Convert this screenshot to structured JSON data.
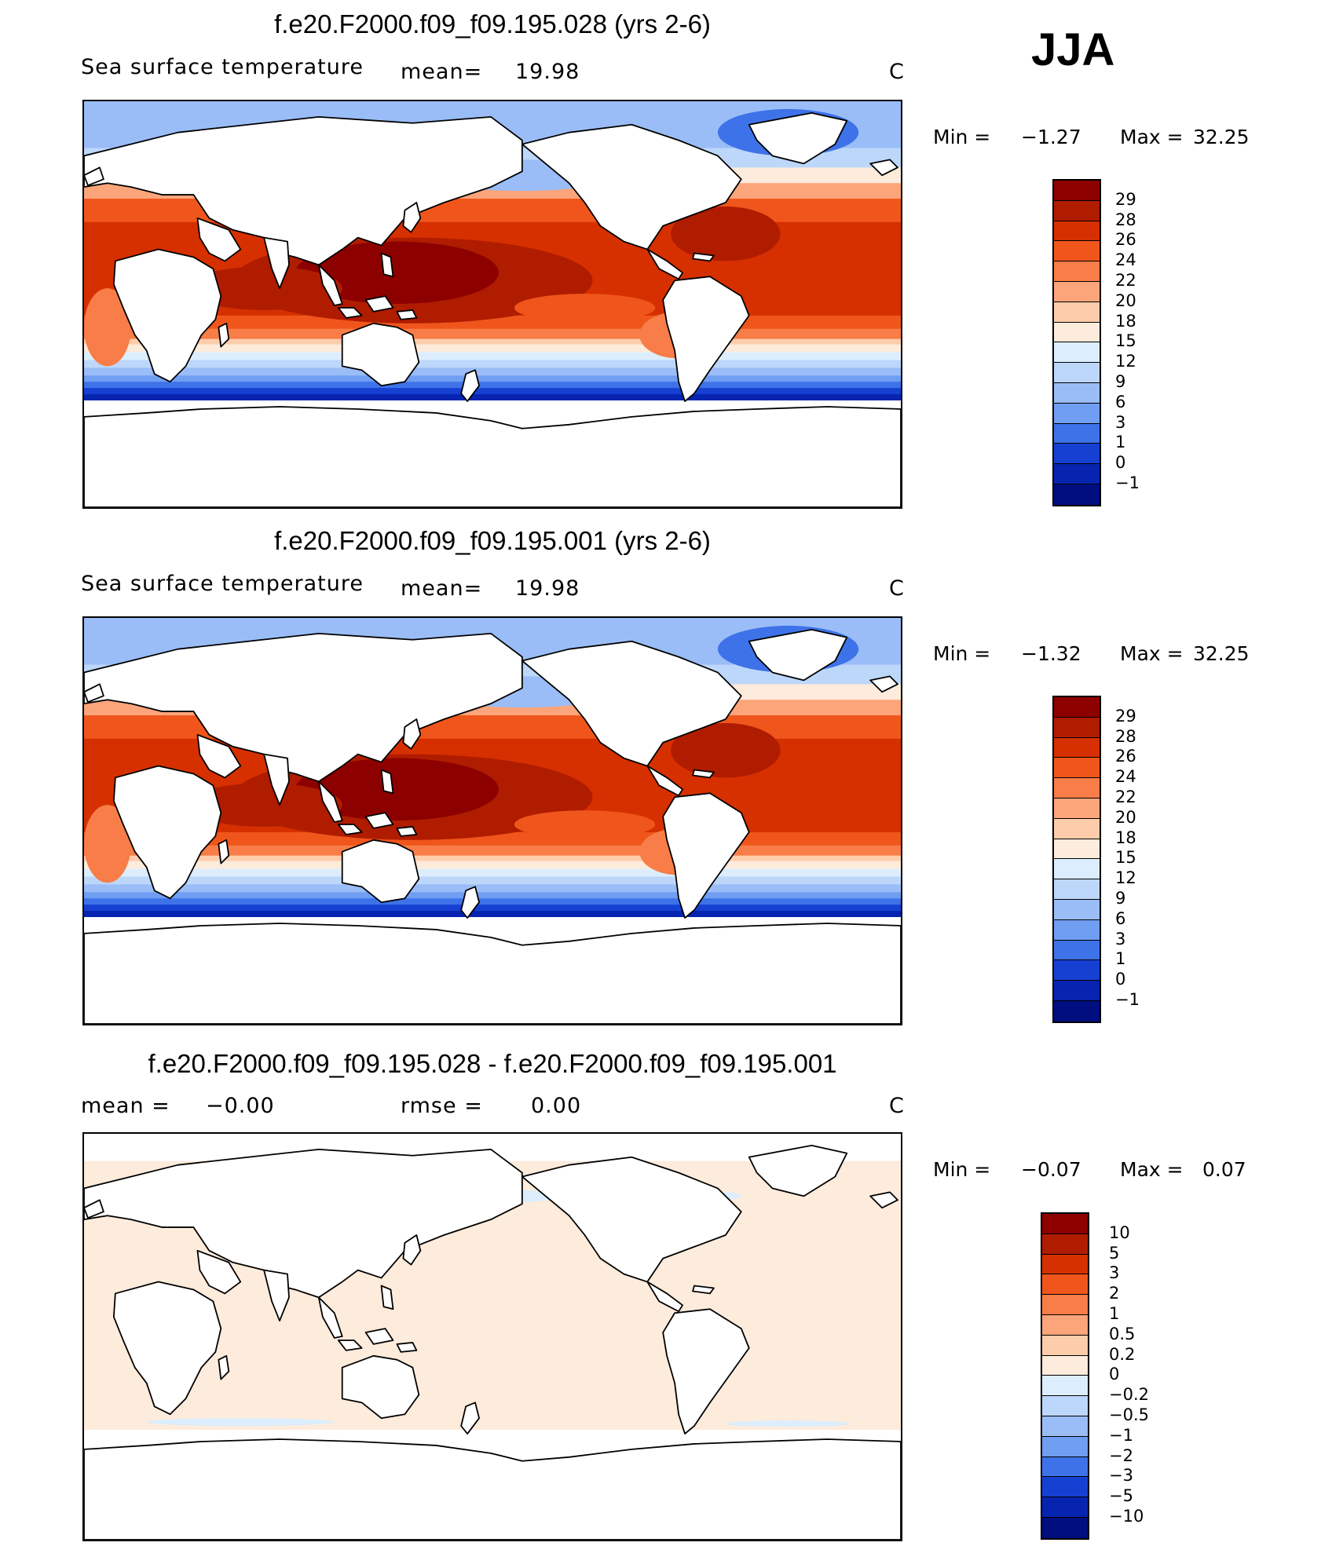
{
  "season": "JJA",
  "panels": [
    {
      "title": "f.e20.F2000.f09_f09.195.028 (yrs 2-6)",
      "variable": "Sea surface temperature",
      "stat_label": "mean=",
      "stat_value": "19.98",
      "units": "C",
      "min_label": "Min =",
      "min_value": "−1.27",
      "max_label": "Max =",
      "max_value": "32.25",
      "colorbar": {
        "labels": [
          "29",
          "28",
          "26",
          "24",
          "22",
          "20",
          "18",
          "15",
          "12",
          "9",
          "6",
          "3",
          "1",
          "0",
          "−1"
        ],
        "colors": [
          "#8c0000",
          "#b01c00",
          "#d63000",
          "#f0561c",
          "#f87d48",
          "#fca57b",
          "#fdcdab",
          "#fdebdb",
          "#dceefe",
          "#bdd7fb",
          "#9abdf7",
          "#6f9ef2",
          "#3e72e8",
          "#1540d2",
          "#0724b0",
          "#000e80"
        ]
      }
    },
    {
      "title": "f.e20.F2000.f09_f09.195.001 (yrs 2-6)",
      "variable": "Sea surface temperature",
      "stat_label": "mean=",
      "stat_value": "19.98",
      "units": "C",
      "min_label": "Min =",
      "min_value": "−1.32",
      "max_label": "Max =",
      "max_value": "32.25",
      "colorbar": {
        "labels": [
          "29",
          "28",
          "26",
          "24",
          "22",
          "20",
          "18",
          "15",
          "12",
          "9",
          "6",
          "3",
          "1",
          "0",
          "−1"
        ],
        "colors": [
          "#8c0000",
          "#b01c00",
          "#d63000",
          "#f0561c",
          "#f87d48",
          "#fca57b",
          "#fdcdab",
          "#fdebdb",
          "#dceefe",
          "#bdd7fb",
          "#9abdf7",
          "#6f9ef2",
          "#3e72e8",
          "#1540d2",
          "#0724b0",
          "#000e80"
        ]
      }
    },
    {
      "title": "f.e20.F2000.f09_f09.195.028 - f.e20.F2000.f09_f09.195.001",
      "stat_label": "mean =",
      "stat_value": "−0.00",
      "rmse_label": "rmse =",
      "rmse_value": "0.00",
      "units": "C",
      "min_label": "Min =",
      "min_value": "−0.07",
      "max_label": "Max =",
      "max_value": "0.07",
      "colorbar": {
        "labels": [
          "10",
          "5",
          "3",
          "2",
          "1",
          "0.5",
          "0.2",
          "0",
          "−0.2",
          "−0.5",
          "−1",
          "−2",
          "−3",
          "−5",
          "−10"
        ],
        "colors": [
          "#8c0000",
          "#b01c00",
          "#d63000",
          "#f0561c",
          "#f87d48",
          "#fca57b",
          "#fdcdab",
          "#fdebdb",
          "#dceefe",
          "#bdd7fb",
          "#9abdf7",
          "#6f9ef2",
          "#3e72e8",
          "#1540d2",
          "#0724b0",
          "#000e80"
        ]
      }
    }
  ]
}
